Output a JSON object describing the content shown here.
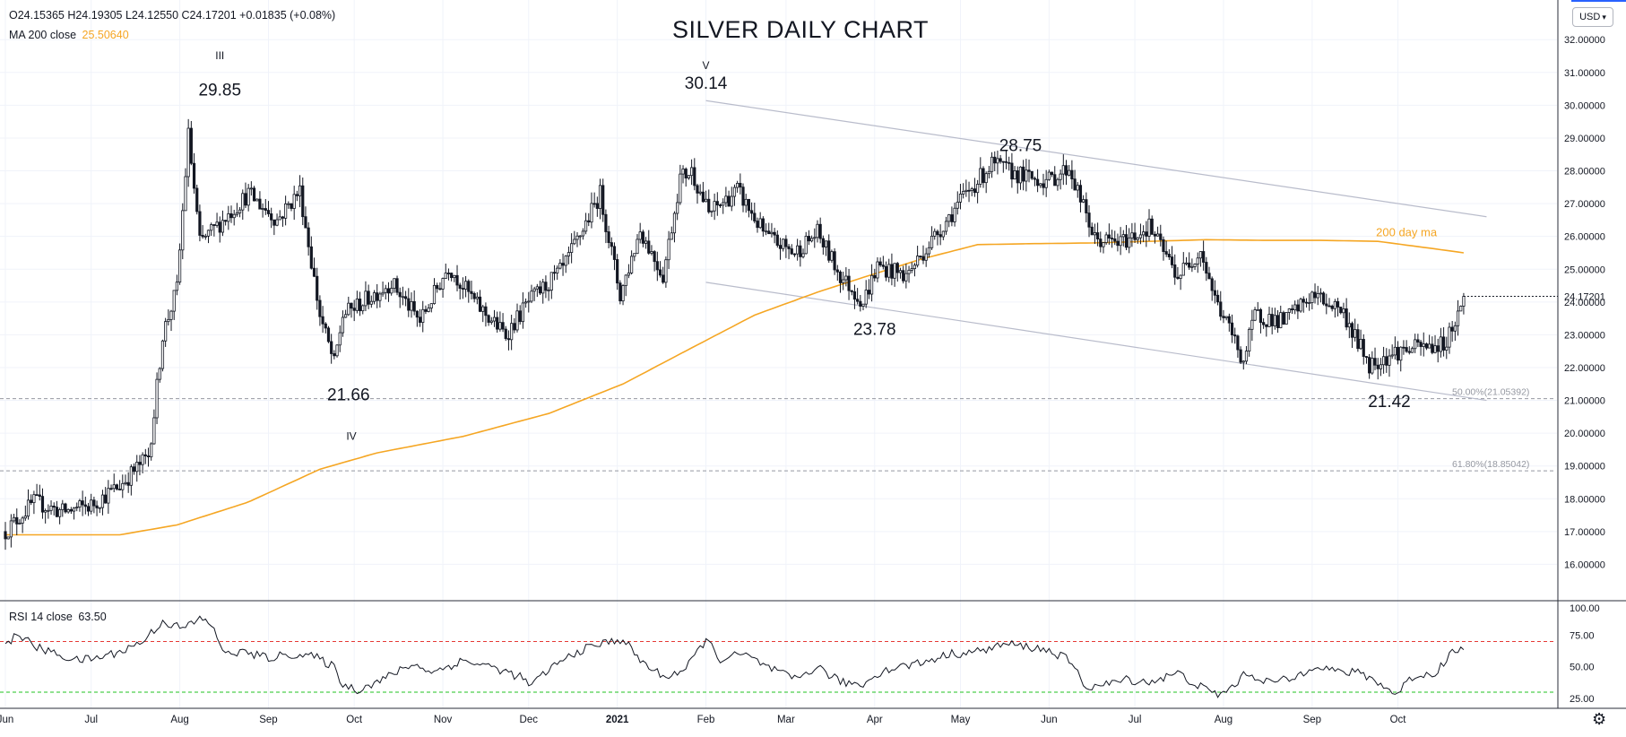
{
  "header": {
    "ohlc_text": "O24.15365  H24.19305  L24.12550  C24.17201  +0.01835 (+0.08%)",
    "ma_label": "MA 200 close",
    "ma_value": "25.50640",
    "currency": "USD",
    "currency_caret": "▾"
  },
  "rsi_header": {
    "label": "RSI 14 close",
    "value": "63.50"
  },
  "icons": {
    "settings": "gear-icon"
  },
  "colors": {
    "ma": "#f5a623",
    "rsi": "#131722",
    "overbought": "#e53935",
    "oversold": "#22c322",
    "channel": "#b9bccb",
    "candle": "#131722",
    "price_tag": "#131722"
  },
  "chart_data": {
    "type": "candlestick",
    "title": "SILVER DAILY CHART",
    "y_ticks": [
      "16.00000",
      "17.00000",
      "18.00000",
      "19.00000",
      "20.00000",
      "21.00000",
      "22.00000",
      "23.00000",
      "24.00000",
      "25.00000",
      "26.00000",
      "27.00000",
      "28.00000",
      "29.00000",
      "30.00000",
      "31.00000",
      "32.00000"
    ],
    "ylim": [
      15.0,
      33.1
    ],
    "x_ticks": [
      "Jun",
      "Jul",
      "Aug",
      "Sep",
      "Oct",
      "Nov",
      "Dec",
      "2021",
      "Feb",
      "Mar",
      "Apr",
      "May",
      "Jun",
      "Jul",
      "Aug",
      "Sep",
      "Oct"
    ],
    "x_tick_days": [
      0,
      30,
      61,
      92,
      122,
      153,
      183,
      214,
      245,
      273,
      304,
      334,
      365,
      395,
      426,
      457,
      487
    ],
    "last_price": "24.17201",
    "price_series": {
      "days": [
        0,
        10,
        20,
        30,
        40,
        50,
        52,
        55,
        60,
        64,
        68,
        75,
        85,
        95,
        103,
        110,
        115,
        118,
        125,
        135,
        145,
        155,
        165,
        175,
        183,
        195,
        208,
        215,
        222,
        230,
        236,
        240,
        246,
        256,
        266,
        276,
        284,
        292,
        300,
        305,
        315,
        325,
        335,
        345,
        357,
        365,
        372,
        381,
        390,
        400,
        410,
        418,
        423,
        429,
        433,
        437,
        447,
        457,
        467,
        477,
        487,
        494,
        503,
        508,
        510
      ],
      "closes": [
        17.0,
        17.9,
        17.6,
        17.8,
        18.4,
        19.3,
        20.6,
        23.0,
        24.4,
        29.1,
        25.8,
        26.4,
        27.3,
        26.5,
        27.4,
        23.6,
        22.1,
        23.6,
        24.0,
        24.6,
        23.4,
        25.1,
        23.9,
        23.0,
        24.0,
        25.0,
        27.3,
        24.2,
        26.2,
        24.8,
        27.8,
        28.0,
        26.7,
        27.4,
        26.0,
        25.5,
        26.1,
        24.8,
        24.0,
        25.1,
        24.8,
        26.0,
        27.2,
        28.2,
        27.8,
        27.7,
        28.1,
        25.9,
        25.8,
        26.3,
        24.8,
        25.6,
        24.1,
        23.0,
        22.2,
        23.6,
        23.4,
        24.2,
        23.8,
        22.1,
        22.5,
        22.6,
        22.7,
        23.6,
        24.17
      ]
    },
    "ma_200": {
      "label": "MA 200 close",
      "days": [
        0,
        20,
        40,
        60,
        85,
        110,
        130,
        160,
        190,
        216,
        240,
        262,
        284,
        300,
        320,
        340,
        360,
        380,
        400,
        420,
        440,
        460,
        480,
        500,
        510
      ],
      "values": [
        16.9,
        16.9,
        16.9,
        17.2,
        17.9,
        18.9,
        19.4,
        19.9,
        20.6,
        21.5,
        22.6,
        23.6,
        24.3,
        24.75,
        25.3,
        25.75,
        25.78,
        25.8,
        25.85,
        25.9,
        25.88,
        25.88,
        25.85,
        25.62,
        25.5
      ]
    },
    "trend_channel": {
      "upper": {
        "start": {
          "day": 245,
          "price": 30.14
        },
        "end": {
          "day": 518,
          "price": 26.6
        }
      },
      "lower": {
        "start": {
          "day": 245,
          "price": 24.6
        },
        "end": {
          "day": 518,
          "price": 21.0
        }
      }
    },
    "fib_levels": [
      {
        "price": 21.05392,
        "label": "50.00%(21.05392)"
      },
      {
        "price": 18.85042,
        "label": "61.80%(18.85042)"
      }
    ],
    "annotations": [
      {
        "text": "III",
        "day": 75,
        "price": 31.4,
        "size": "small"
      },
      {
        "text": "29.85",
        "day": 75,
        "price": 30.3,
        "size": "large"
      },
      {
        "text": "V",
        "day": 245,
        "price": 31.1,
        "size": "small"
      },
      {
        "text": "30.14",
        "day": 245,
        "price": 30.5,
        "size": "large"
      },
      {
        "text": "28.75",
        "day": 355,
        "price": 28.6,
        "size": "large"
      },
      {
        "text": "21.66",
        "day": 120,
        "price": 21.0,
        "size": "large"
      },
      {
        "text": "IV",
        "day": 121,
        "price": 19.8,
        "size": "small"
      },
      {
        "text": "23.78",
        "day": 304,
        "price": 23.0,
        "size": "large"
      },
      {
        "text": "21.42",
        "day": 484,
        "price": 20.8,
        "size": "large"
      },
      {
        "text": "200 day ma",
        "day": 490,
        "price": 26.0,
        "size": "ma"
      }
    ],
    "rsi": {
      "label": "RSI 14 close",
      "value": "63.50",
      "y_ticks": [
        "100.00",
        "75.00",
        "50.00",
        "25.00"
      ],
      "ylim": [
        18,
        100
      ],
      "overbought": 70,
      "oversold": 30,
      "days": [
        0,
        5,
        10,
        18,
        25,
        32,
        40,
        48,
        55,
        62,
        68,
        73,
        76,
        82,
        92,
        100,
        108,
        115,
        118,
        123,
        132,
        142,
        150,
        160,
        170,
        180,
        184,
        190,
        200,
        208,
        216,
        222,
        230,
        238,
        245,
        250,
        258,
        268,
        276,
        284,
        292,
        300,
        305,
        312,
        320,
        330,
        340,
        350,
        360,
        366,
        372,
        378,
        385,
        392,
        400,
        410,
        418,
        424,
        428,
        434,
        442,
        450,
        458,
        466,
        474,
        480,
        486,
        492,
        500,
        506,
        510
      ],
      "values": [
        68,
        76,
        66,
        60,
        55,
        57,
        62,
        70,
        86,
        80,
        88,
        82,
        60,
        62,
        57,
        60,
        58,
        50,
        36,
        32,
        40,
        52,
        46,
        55,
        50,
        42,
        35,
        48,
        62,
        68,
        72,
        55,
        42,
        48,
        72,
        56,
        60,
        48,
        40,
        50,
        38,
        36,
        45,
        50,
        53,
        60,
        62,
        68,
        65,
        62,
        55,
        34,
        36,
        40,
        38,
        45,
        34,
        28,
        32,
        45,
        38,
        40,
        52,
        46,
        45,
        38,
        28,
        42,
        45,
        62,
        63.5
      ]
    }
  }
}
